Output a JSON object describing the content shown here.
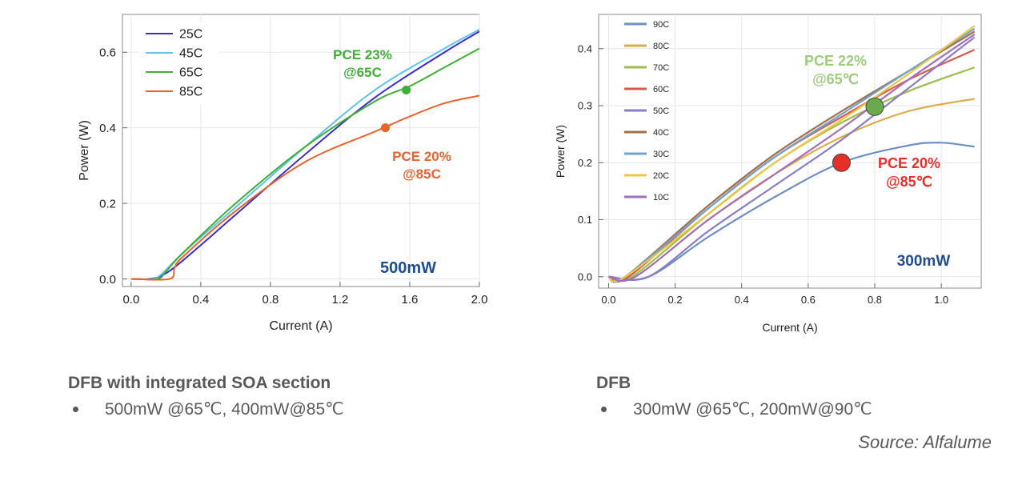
{
  "chart_data": [
    {
      "type": "line",
      "xlabel": "Current (A)",
      "ylabel": "Power (W)",
      "xlim": [
        -0.05,
        2.0
      ],
      "ylim": [
        -0.02,
        0.7
      ],
      "xticks": [
        0.0,
        0.4,
        0.8,
        1.2,
        1.6,
        2.0
      ],
      "xtick_labels": [
        "0.0",
        "0.4",
        "0.8",
        "1.2",
        "1.6",
        "2.0"
      ],
      "yticks": [
        0.0,
        0.2,
        0.4,
        0.6
      ],
      "ytick_labels": [
        "0.0",
        "0.2",
        "0.4",
        "0.6"
      ],
      "legend_position": "top-left",
      "series": [
        {
          "name": "25C",
          "color": "#3b2bd1",
          "x": [
            0,
            0.1,
            0.18,
            0.3,
            0.6,
            1.0,
            1.4,
            1.8,
            2.0
          ],
          "y": [
            0,
            0,
            0.01,
            0.05,
            0.17,
            0.33,
            0.48,
            0.6,
            0.655
          ]
        },
        {
          "name": "45C",
          "color": "#5fc2ea",
          "x": [
            0,
            0.12,
            0.18,
            0.3,
            0.6,
            1.0,
            1.4,
            1.8,
            2.0
          ],
          "y": [
            0,
            0,
            0.015,
            0.07,
            0.19,
            0.35,
            0.5,
            0.61,
            0.66
          ]
        },
        {
          "name": "65C",
          "color": "#3fae35",
          "x": [
            0,
            0.15,
            0.2,
            0.3,
            0.6,
            1.0,
            1.4,
            1.6,
            1.8,
            2.0
          ],
          "y": [
            0,
            0,
            0.02,
            0.07,
            0.2,
            0.35,
            0.47,
            0.51,
            0.56,
            0.61
          ]
        },
        {
          "name": "85C",
          "color": "#e9622a",
          "x": [
            0,
            0.22,
            0.25,
            0.3,
            0.6,
            1.0,
            1.4,
            1.6,
            1.8,
            2.0
          ],
          "y": [
            0,
            0,
            0.03,
            0.06,
            0.18,
            0.31,
            0.39,
            0.43,
            0.465,
            0.485
          ]
        }
      ],
      "markers": [
        {
          "name": "pce-65c-point",
          "x": 1.58,
          "y": 0.5,
          "color": "#3fae35"
        },
        {
          "name": "pce-85c-point",
          "x": 1.46,
          "y": 0.4,
          "color": "#e9622a"
        }
      ],
      "annotations": {
        "pce_65": {
          "line1": "PCE 23%",
          "line2": "@65C",
          "color": "#3fae35"
        },
        "pce_85": {
          "line1": "PCE 20%",
          "line2": "@85C",
          "color": "#e9622a"
        },
        "power": {
          "text": "500mW",
          "color": "#1f4e8c"
        }
      }
    },
    {
      "type": "line",
      "xlabel": "Current (A)",
      "ylabel": "Power (W)",
      "xlim": [
        -0.03,
        1.12
      ],
      "ylim": [
        -0.02,
        0.46
      ],
      "xticks": [
        0.0,
        0.2,
        0.4,
        0.6,
        0.8,
        1.0
      ],
      "xtick_labels": [
        "0.0",
        "0.2",
        "0.4",
        "0.6",
        "0.8",
        "1.0"
      ],
      "yticks": [
        0.0,
        0.1,
        0.2,
        0.3,
        0.4
      ],
      "ytick_labels": [
        "0.0",
        "0.1",
        "0.2",
        "0.3",
        "0.4"
      ],
      "legend_position": "top-left",
      "series": [
        {
          "name": "90C",
          "color": "#6e8fc3",
          "x": [
            0,
            0.12,
            0.3,
            0.5,
            0.7,
            0.9,
            1.0,
            1.1
          ],
          "y": [
            0,
            0,
            0.07,
            0.14,
            0.2,
            0.23,
            0.235,
            0.228
          ]
        },
        {
          "name": "80C",
          "color": "#e0a848",
          "x": [
            0,
            0.08,
            0.3,
            0.5,
            0.7,
            0.9,
            1.1
          ],
          "y": [
            0,
            0,
            0.1,
            0.18,
            0.245,
            0.29,
            0.312
          ]
        },
        {
          "name": "70C",
          "color": "#9bbd4e",
          "x": [
            0,
            0.07,
            0.3,
            0.5,
            0.7,
            0.9,
            1.1
          ],
          "y": [
            0,
            0,
            0.11,
            0.2,
            0.27,
            0.325,
            0.367
          ]
        },
        {
          "name": "60C",
          "color": "#d75b4a",
          "x": [
            0,
            0.06,
            0.3,
            0.5,
            0.7,
            0.9,
            1.1
          ],
          "y": [
            0,
            0,
            0.12,
            0.21,
            0.28,
            0.345,
            0.398
          ]
        },
        {
          "name": "50C",
          "color": "#8a7cc4",
          "x": [
            0,
            0.12,
            0.3,
            0.5,
            0.7,
            0.9,
            1.1
          ],
          "y": [
            0,
            0,
            0.08,
            0.16,
            0.24,
            0.33,
            0.42
          ]
        },
        {
          "name": "40C",
          "color": "#a0704a",
          "x": [
            0,
            0.05,
            0.3,
            0.5,
            0.7,
            0.9,
            1.1
          ],
          "y": [
            0,
            0,
            0.125,
            0.215,
            0.29,
            0.36,
            0.43
          ]
        },
        {
          "name": "30C",
          "color": "#6fa4cf",
          "x": [
            0,
            0.05,
            0.3,
            0.5,
            0.7,
            0.9,
            1.1
          ],
          "y": [
            0,
            0,
            0.12,
            0.21,
            0.285,
            0.36,
            0.435
          ]
        },
        {
          "name": "20C",
          "color": "#ecc644",
          "x": [
            0,
            0.05,
            0.3,
            0.5,
            0.7,
            0.9,
            1.1
          ],
          "y": [
            0,
            0,
            0.11,
            0.2,
            0.275,
            0.355,
            0.44
          ]
        },
        {
          "name": "10C",
          "color": "#a46fb8",
          "x": [
            0,
            0.08,
            0.3,
            0.5,
            0.7,
            0.9,
            1.1
          ],
          "y": [
            0,
            0,
            0.1,
            0.18,
            0.26,
            0.345,
            0.425
          ]
        }
      ],
      "markers": [
        {
          "name": "pce-65c-point",
          "x": 0.8,
          "y": 0.298,
          "color": "#6aaa4a"
        },
        {
          "name": "pce-85c-point",
          "x": 0.7,
          "y": 0.2,
          "color": "#e5302a"
        }
      ],
      "annotations": {
        "pce_65": {
          "line1": "PCE 22%",
          "line2": "@65℃",
          "color": "#9ccc7c"
        },
        "pce_85": {
          "line1": "PCE 20%",
          "line2": "@85℃",
          "color": "#e5302a"
        },
        "power": {
          "text": "300mW",
          "color": "#1f4e8c"
        }
      }
    }
  ],
  "captions": {
    "left": {
      "title": "DFB with integrated SOA section",
      "bullet": "500mW @65℃, 400mW@85℃"
    },
    "right": {
      "title": "DFB",
      "bullet": "300mW @65℃, 200mW@90℃"
    }
  },
  "source": "Source: Alfalume"
}
